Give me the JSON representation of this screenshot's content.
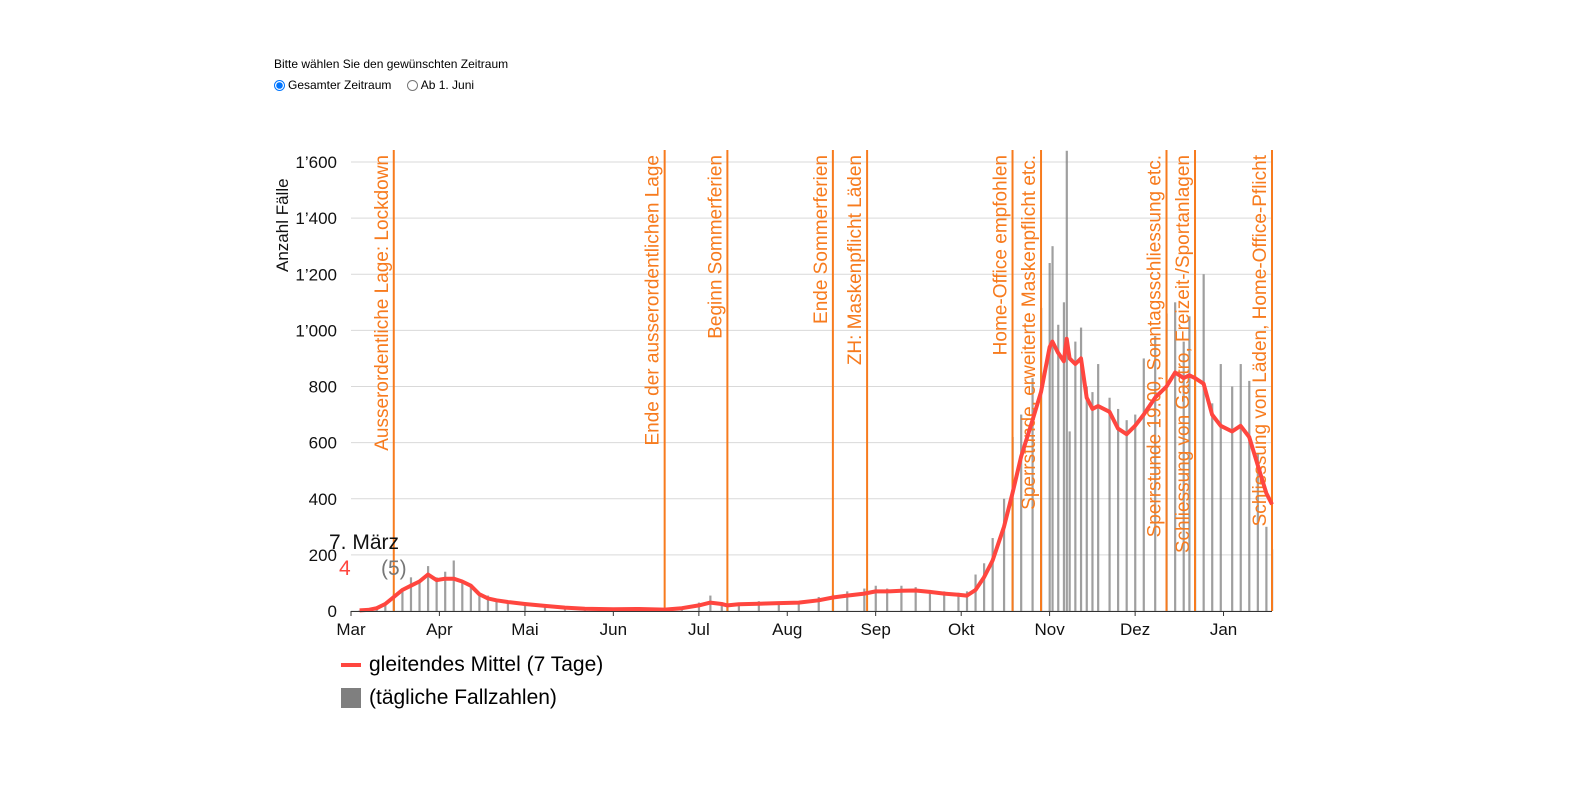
{
  "controls": {
    "prompt": "Bitte wählen Sie den gewünschten Zeitraum",
    "options": [
      {
        "label": "Gesamter Zeitraum",
        "checked": true
      },
      {
        "label": "Ab 1. Juni",
        "checked": false
      }
    ]
  },
  "tooltip": {
    "date": "7. März",
    "avg": "4",
    "daily": "(5)"
  },
  "legend": {
    "line": "gleitendes Mittel (7 Tage)",
    "bars": "(tägliche Fallzahlen)"
  },
  "colors": {
    "line": "#ff463f",
    "bars": "#7f7f7f",
    "events": "#f77b1e",
    "grid": "#d9d9d9"
  },
  "chart_data": {
    "type": "bar",
    "title": "",
    "xlabel": "",
    "ylabel": "Anzahl Fälle",
    "ylim": [
      0,
      1600
    ],
    "yticks": [
      0,
      200,
      400,
      600,
      800,
      1000,
      1200,
      1400,
      1600
    ],
    "ytick_labels": [
      "0",
      "200",
      "400",
      "600",
      "800",
      "1’000",
      "1’200",
      "1’400",
      "1’600"
    ],
    "start_date": "2020-03-01",
    "end_date": "2021-01-18",
    "xticks": [
      {
        "date": "2020-03-01",
        "label": "Mar"
      },
      {
        "date": "2020-04-01",
        "label": "Apr"
      },
      {
        "date": "2020-05-01",
        "label": "Mai"
      },
      {
        "date": "2020-06-01",
        "label": "Jun"
      },
      {
        "date": "2020-07-01",
        "label": "Jul"
      },
      {
        "date": "2020-08-01",
        "label": "Aug"
      },
      {
        "date": "2020-09-01",
        "label": "Sep"
      },
      {
        "date": "2020-10-01",
        "label": "Okt"
      },
      {
        "date": "2020-11-01",
        "label": "Nov"
      },
      {
        "date": "2020-12-01",
        "label": "Dez"
      },
      {
        "date": "2021-01-01",
        "label": "Jan"
      }
    ],
    "events": [
      {
        "date": "2020-03-16",
        "label": "Ausserordentliche Lage: Lockdown"
      },
      {
        "date": "2020-06-19",
        "label": "Ende der ausserordentlichen Lage"
      },
      {
        "date": "2020-07-11",
        "label": "Beginn Sommerferien"
      },
      {
        "date": "2020-08-17",
        "label": "Ende Sommerferien"
      },
      {
        "date": "2020-08-29",
        "label": "ZH: Maskenpflicht Läden"
      },
      {
        "date": "2020-10-19",
        "label": "Home-Office empfohlen"
      },
      {
        "date": "2020-10-29",
        "label": "Sperrstunde, erweiterte Maskenpflicht etc."
      },
      {
        "date": "2020-12-12",
        "label": "Sperrstunde 19.00, Sonntagsschliessung etc."
      },
      {
        "date": "2020-12-22",
        "label": "Schliessung von Gastro, Freizeit-/Sportanlagen"
      },
      {
        "date": "2021-01-18",
        "label": "Schliessung von Läden, Home-Office-Pflicht"
      }
    ],
    "series": [
      {
        "name": "gleitendes Mittel (7 Tage)",
        "type": "line",
        "points": [
          [
            "2020-03-04",
            2
          ],
          [
            "2020-03-07",
            4
          ],
          [
            "2020-03-10",
            10
          ],
          [
            "2020-03-13",
            25
          ],
          [
            "2020-03-16",
            50
          ],
          [
            "2020-03-19",
            75
          ],
          [
            "2020-03-22",
            90
          ],
          [
            "2020-03-25",
            105
          ],
          [
            "2020-03-28",
            130
          ],
          [
            "2020-03-31",
            110
          ],
          [
            "2020-04-03",
            115
          ],
          [
            "2020-04-06",
            115
          ],
          [
            "2020-04-09",
            105
          ],
          [
            "2020-04-12",
            90
          ],
          [
            "2020-04-15",
            60
          ],
          [
            "2020-04-18",
            45
          ],
          [
            "2020-04-21",
            38
          ],
          [
            "2020-04-25",
            32
          ],
          [
            "2020-05-01",
            25
          ],
          [
            "2020-05-08",
            18
          ],
          [
            "2020-05-15",
            12
          ],
          [
            "2020-05-22",
            8
          ],
          [
            "2020-06-01",
            6
          ],
          [
            "2020-06-10",
            7
          ],
          [
            "2020-06-19",
            5
          ],
          [
            "2020-06-25",
            10
          ],
          [
            "2020-07-01",
            20
          ],
          [
            "2020-07-05",
            30
          ],
          [
            "2020-07-09",
            25
          ],
          [
            "2020-07-11",
            20
          ],
          [
            "2020-07-15",
            24
          ],
          [
            "2020-07-22",
            26
          ],
          [
            "2020-07-29",
            28
          ],
          [
            "2020-08-05",
            30
          ],
          [
            "2020-08-12",
            38
          ],
          [
            "2020-08-17",
            48
          ],
          [
            "2020-08-22",
            55
          ],
          [
            "2020-08-28",
            62
          ],
          [
            "2020-09-01",
            70
          ],
          [
            "2020-09-05",
            70
          ],
          [
            "2020-09-10",
            72
          ],
          [
            "2020-09-15",
            73
          ],
          [
            "2020-09-20",
            68
          ],
          [
            "2020-09-25",
            62
          ],
          [
            "2020-09-30",
            58
          ],
          [
            "2020-10-03",
            55
          ],
          [
            "2020-10-06",
            75
          ],
          [
            "2020-10-09",
            120
          ],
          [
            "2020-10-12",
            180
          ],
          [
            "2020-10-16",
            300
          ],
          [
            "2020-10-19",
            420
          ],
          [
            "2020-10-22",
            550
          ],
          [
            "2020-10-26",
            680
          ],
          [
            "2020-10-29",
            780
          ],
          [
            "2020-11-01",
            940
          ],
          [
            "2020-11-02",
            960
          ],
          [
            "2020-11-04",
            920
          ],
          [
            "2020-11-06",
            890
          ],
          [
            "2020-11-07",
            970
          ],
          [
            "2020-11-08",
            900
          ],
          [
            "2020-11-10",
            880
          ],
          [
            "2020-11-12",
            900
          ],
          [
            "2020-11-14",
            760
          ],
          [
            "2020-11-16",
            720
          ],
          [
            "2020-11-18",
            730
          ],
          [
            "2020-11-22",
            710
          ],
          [
            "2020-11-25",
            650
          ],
          [
            "2020-11-28",
            630
          ],
          [
            "2020-12-01",
            660
          ],
          [
            "2020-12-04",
            700
          ],
          [
            "2020-12-08",
            760
          ],
          [
            "2020-12-12",
            800
          ],
          [
            "2020-12-15",
            850
          ],
          [
            "2020-12-18",
            830
          ],
          [
            "2020-12-20",
            840
          ],
          [
            "2020-12-22",
            830
          ],
          [
            "2020-12-25",
            810
          ],
          [
            "2020-12-28",
            700
          ],
          [
            "2020-12-31",
            660
          ],
          [
            "2021-01-04",
            640
          ],
          [
            "2021-01-07",
            660
          ],
          [
            "2021-01-10",
            620
          ],
          [
            "2021-01-13",
            520
          ],
          [
            "2021-01-16",
            420
          ],
          [
            "2021-01-18",
            380
          ]
        ]
      },
      {
        "name": "(tägliche Fallzahlen)",
        "type": "bar",
        "points": [
          [
            "2020-03-04",
            2
          ],
          [
            "2020-03-07",
            5
          ],
          [
            "2020-03-10",
            12
          ],
          [
            "2020-03-13",
            30
          ],
          [
            "2020-03-16",
            60
          ],
          [
            "2020-03-19",
            80
          ],
          [
            "2020-03-22",
            120
          ],
          [
            "2020-03-25",
            110
          ],
          [
            "2020-03-28",
            160
          ],
          [
            "2020-03-31",
            120
          ],
          [
            "2020-04-03",
            140
          ],
          [
            "2020-04-06",
            180
          ],
          [
            "2020-04-09",
            100
          ],
          [
            "2020-04-12",
            90
          ],
          [
            "2020-04-15",
            60
          ],
          [
            "2020-04-18",
            55
          ],
          [
            "2020-04-21",
            40
          ],
          [
            "2020-04-25",
            30
          ],
          [
            "2020-05-01",
            25
          ],
          [
            "2020-05-08",
            18
          ],
          [
            "2020-05-15",
            12
          ],
          [
            "2020-05-22",
            8
          ],
          [
            "2020-06-01",
            6
          ],
          [
            "2020-06-10",
            9
          ],
          [
            "2020-06-19",
            8
          ],
          [
            "2020-06-25",
            14
          ],
          [
            "2020-07-01",
            30
          ],
          [
            "2020-07-05",
            55
          ],
          [
            "2020-07-09",
            25
          ],
          [
            "2020-07-11",
            20
          ],
          [
            "2020-07-15",
            30
          ],
          [
            "2020-07-22",
            35
          ],
          [
            "2020-07-29",
            30
          ],
          [
            "2020-08-05",
            35
          ],
          [
            "2020-08-12",
            50
          ],
          [
            "2020-08-17",
            60
          ],
          [
            "2020-08-22",
            70
          ],
          [
            "2020-08-28",
            80
          ],
          [
            "2020-09-01",
            90
          ],
          [
            "2020-09-05",
            80
          ],
          [
            "2020-09-10",
            90
          ],
          [
            "2020-09-15",
            85
          ],
          [
            "2020-09-20",
            75
          ],
          [
            "2020-09-25",
            70
          ],
          [
            "2020-09-30",
            65
          ],
          [
            "2020-10-03",
            70
          ],
          [
            "2020-10-06",
            130
          ],
          [
            "2020-10-09",
            170
          ],
          [
            "2020-10-12",
            260
          ],
          [
            "2020-10-16",
            400
          ],
          [
            "2020-10-19",
            620
          ],
          [
            "2020-10-22",
            700
          ],
          [
            "2020-10-26",
            830
          ],
          [
            "2020-10-29",
            1080
          ],
          [
            "2020-11-01",
            1240
          ],
          [
            "2020-11-02",
            1300
          ],
          [
            "2020-11-04",
            1020
          ],
          [
            "2020-11-06",
            1100
          ],
          [
            "2020-11-07",
            1640
          ],
          [
            "2020-11-08",
            640
          ],
          [
            "2020-11-10",
            960
          ],
          [
            "2020-11-12",
            1010
          ],
          [
            "2020-11-14",
            800
          ],
          [
            "2020-11-16",
            780
          ],
          [
            "2020-11-18",
            880
          ],
          [
            "2020-11-22",
            760
          ],
          [
            "2020-11-25",
            720
          ],
          [
            "2020-11-28",
            680
          ],
          [
            "2020-12-01",
            700
          ],
          [
            "2020-12-04",
            900
          ],
          [
            "2020-12-08",
            980
          ],
          [
            "2020-12-12",
            1060
          ],
          [
            "2020-12-15",
            1100
          ],
          [
            "2020-12-18",
            960
          ],
          [
            "2020-12-20",
            1050
          ],
          [
            "2020-12-22",
            1000
          ],
          [
            "2020-12-25",
            1200
          ],
          [
            "2020-12-28",
            740
          ],
          [
            "2020-12-31",
            880
          ],
          [
            "2021-01-04",
            800
          ],
          [
            "2021-01-07",
            880
          ],
          [
            "2021-01-10",
            820
          ],
          [
            "2021-01-13",
            560
          ],
          [
            "2021-01-16",
            300
          ],
          [
            "2021-01-18",
            220
          ]
        ]
      }
    ],
    "legend_position": "bottom-left",
    "grid": true
  }
}
